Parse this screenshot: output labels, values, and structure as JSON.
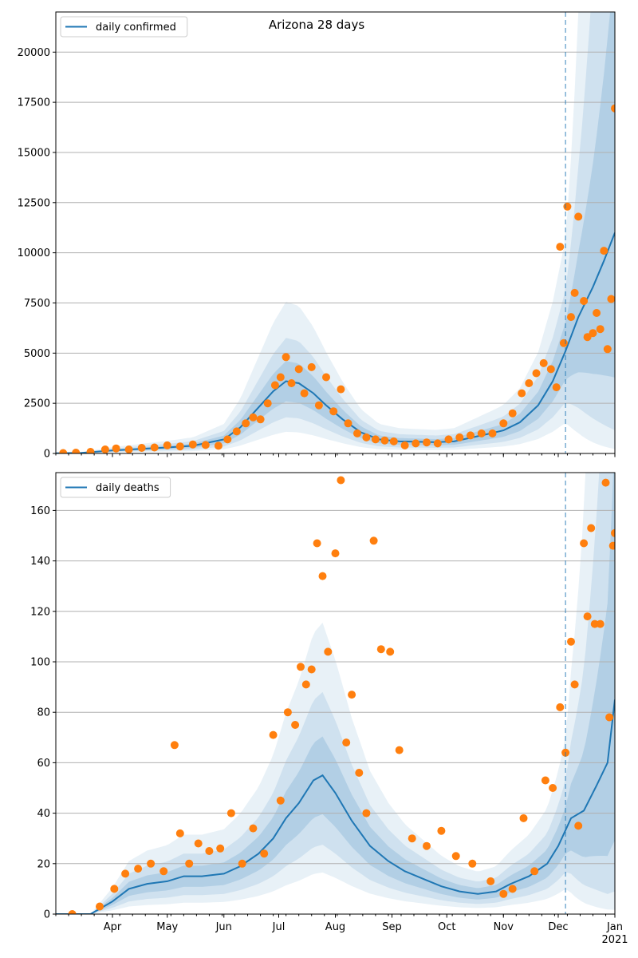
{
  "chart_data": [
    {
      "type": "line",
      "title": "Arizona 28 days",
      "xlabel": "",
      "ylabel": "",
      "ylim": [
        0,
        22000
      ],
      "grid": "horizontal",
      "legend_position": "top-left",
      "xlim": [
        "2020-03-01",
        "2021-01-01"
      ],
      "x_tick_labels": [
        "Apr",
        "May",
        "Jun",
        "Jul",
        "Aug",
        "Sep",
        "Oct",
        "Nov",
        "Dec",
        "Jan\n2021"
      ],
      "y_ticks": [
        0,
        2500,
        5000,
        7500,
        10000,
        12500,
        15000,
        17500,
        20000
      ],
      "y_tick_labels": [
        "0",
        "2500",
        "5000",
        "7500",
        "10000",
        "12500",
        "15000",
        "17500",
        "20000"
      ],
      "forecast_start": "2020-12-05",
      "series": [
        {
          "name": "daily confirmed",
          "kind": "line",
          "color": "#1f77b4",
          "x": [
            "2020-03-01",
            "2020-03-15",
            "2020-04-01",
            "2020-04-15",
            "2020-05-01",
            "2020-05-15",
            "2020-06-01",
            "2020-06-10",
            "2020-06-20",
            "2020-06-28",
            "2020-07-05",
            "2020-07-12",
            "2020-07-20",
            "2020-07-27",
            "2020-08-05",
            "2020-08-15",
            "2020-08-25",
            "2020-09-05",
            "2020-09-15",
            "2020-09-25",
            "2020-10-05",
            "2020-10-15",
            "2020-10-25",
            "2020-11-01",
            "2020-11-10",
            "2020-11-20",
            "2020-11-28",
            "2020-12-05",
            "2020-12-12",
            "2020-12-20",
            "2020-12-26",
            "2021-01-01"
          ],
          "values": [
            10,
            30,
            150,
            220,
            300,
            380,
            700,
            1300,
            2300,
            3100,
            3600,
            3500,
            3000,
            2400,
            1700,
            1050,
            700,
            600,
            580,
            560,
            600,
            800,
            1000,
            1150,
            1550,
            2400,
            3600,
            5100,
            6800,
            8300,
            9600,
            11000
          ]
        },
        {
          "name": "",
          "kind": "scatter",
          "color": "#ff7f0e",
          "x": [
            "2020-03-05",
            "2020-03-12",
            "2020-03-20",
            "2020-03-28",
            "2020-04-03",
            "2020-04-10",
            "2020-04-17",
            "2020-04-24",
            "2020-05-01",
            "2020-05-08",
            "2020-05-15",
            "2020-05-22",
            "2020-05-29",
            "2020-06-03",
            "2020-06-08",
            "2020-06-13",
            "2020-06-17",
            "2020-06-21",
            "2020-06-25",
            "2020-06-29",
            "2020-07-02",
            "2020-07-05",
            "2020-07-08",
            "2020-07-12",
            "2020-07-15",
            "2020-07-19",
            "2020-07-23",
            "2020-07-27",
            "2020-07-31",
            "2020-08-04",
            "2020-08-08",
            "2020-08-13",
            "2020-08-18",
            "2020-08-23",
            "2020-08-28",
            "2020-09-02",
            "2020-09-08",
            "2020-09-14",
            "2020-09-20",
            "2020-09-26",
            "2020-10-02",
            "2020-10-08",
            "2020-10-14",
            "2020-10-20",
            "2020-10-26",
            "2020-11-01",
            "2020-11-06",
            "2020-11-11",
            "2020-11-15",
            "2020-11-19",
            "2020-11-23",
            "2020-11-27",
            "2020-11-30",
            "2020-12-02",
            "2020-12-04",
            "2020-12-06",
            "2020-12-08",
            "2020-12-10",
            "2020-12-12",
            "2020-12-15",
            "2020-12-17",
            "2020-12-20",
            "2020-12-22",
            "2020-12-24",
            "2020-12-26",
            "2020-12-28",
            "2020-12-30",
            "2021-01-01"
          ],
          "values": [
            20,
            40,
            80,
            200,
            250,
            200,
            280,
            300,
            400,
            350,
            450,
            420,
            380,
            700,
            1100,
            1500,
            1800,
            1700,
            2500,
            3400,
            3800,
            4800,
            3500,
            4200,
            3000,
            4300,
            2400,
            3800,
            2100,
            3200,
            1500,
            1000,
            800,
            700,
            650,
            600,
            400,
            500,
            550,
            500,
            700,
            800,
            900,
            1000,
            1000,
            1500,
            2000,
            3000,
            3500,
            4000,
            4500,
            4200,
            3300,
            10300,
            5500,
            12300,
            6800,
            8000,
            11800,
            7600,
            5800,
            6000,
            7000,
            6200,
            10100,
            5200,
            7700,
            17200
          ]
        }
      ]
    },
    {
      "type": "line",
      "title": "",
      "xlabel": "",
      "ylabel": "",
      "ylim": [
        0,
        175
      ],
      "grid": "horizontal",
      "legend_position": "top-left",
      "xlim": [
        "2020-03-01",
        "2021-01-01"
      ],
      "x_tick_labels": [
        "Apr",
        "May",
        "Jun",
        "Jul",
        "Aug",
        "Sep",
        "Oct",
        "Nov",
        "Dec",
        "Jan\n2021"
      ],
      "y_ticks": [
        0,
        20,
        40,
        60,
        80,
        100,
        120,
        140,
        160
      ],
      "y_tick_labels": [
        "0",
        "20",
        "40",
        "60",
        "80",
        "100",
        "120",
        "140",
        "160"
      ],
      "forecast_start": "2020-12-05",
      "series": [
        {
          "name": "daily deaths",
          "kind": "line",
          "color": "#1f77b4",
          "x": [
            "2020-03-01",
            "2020-03-20",
            "2020-04-01",
            "2020-04-10",
            "2020-04-20",
            "2020-05-01",
            "2020-05-10",
            "2020-05-20",
            "2020-06-01",
            "2020-06-10",
            "2020-06-20",
            "2020-06-28",
            "2020-07-05",
            "2020-07-12",
            "2020-07-20",
            "2020-07-25",
            "2020-08-01",
            "2020-08-10",
            "2020-08-20",
            "2020-08-30",
            "2020-09-08",
            "2020-09-18",
            "2020-09-28",
            "2020-10-08",
            "2020-10-18",
            "2020-10-28",
            "2020-11-05",
            "2020-11-15",
            "2020-11-25",
            "2020-12-01",
            "2020-12-08",
            "2020-12-15",
            "2020-12-22",
            "2020-12-28",
            "2021-01-01"
          ],
          "values": [
            0,
            0,
            5,
            10,
            12,
            13,
            15,
            15,
            16,
            19,
            24,
            30,
            38,
            44,
            53,
            55,
            48,
            37,
            27,
            21,
            17,
            14,
            11,
            9,
            8,
            9,
            12,
            15,
            20,
            27,
            38,
            41,
            51,
            60,
            85
          ]
        },
        {
          "name": "",
          "kind": "scatter",
          "color": "#ff7f0e",
          "x": [
            "2020-03-10",
            "2020-03-25",
            "2020-04-02",
            "2020-04-08",
            "2020-04-15",
            "2020-04-22",
            "2020-04-29",
            "2020-05-05",
            "2020-05-08",
            "2020-05-13",
            "2020-05-18",
            "2020-05-24",
            "2020-05-30",
            "2020-06-05",
            "2020-06-11",
            "2020-06-17",
            "2020-06-23",
            "2020-06-28",
            "2020-07-02",
            "2020-07-06",
            "2020-07-10",
            "2020-07-13",
            "2020-07-16",
            "2020-07-19",
            "2020-07-22",
            "2020-07-25",
            "2020-07-28",
            "2020-08-01",
            "2020-08-04",
            "2020-08-07",
            "2020-08-10",
            "2020-08-14",
            "2020-08-18",
            "2020-08-22",
            "2020-08-26",
            "2020-08-31",
            "2020-09-05",
            "2020-09-12",
            "2020-09-20",
            "2020-09-28",
            "2020-10-06",
            "2020-10-15",
            "2020-10-25",
            "2020-11-01",
            "2020-11-06",
            "2020-11-12",
            "2020-11-18",
            "2020-11-24",
            "2020-11-28",
            "2020-12-02",
            "2020-12-05",
            "2020-12-08",
            "2020-12-10",
            "2020-12-12",
            "2020-12-15",
            "2020-12-17",
            "2020-12-19",
            "2020-12-21",
            "2020-12-24",
            "2020-12-27",
            "2020-12-29",
            "2020-12-31",
            "2021-01-01"
          ],
          "values": [
            0,
            3,
            10,
            16,
            18,
            20,
            17,
            67,
            32,
            20,
            28,
            25,
            26,
            40,
            20,
            34,
            24,
            71,
            45,
            80,
            75,
            98,
            91,
            97,
            147,
            134,
            104,
            143,
            172,
            68,
            87,
            56,
            40,
            148,
            105,
            104,
            65,
            30,
            27,
            33,
            23,
            20,
            13,
            8,
            10,
            38,
            17,
            53,
            50,
            82,
            64,
            108,
            91,
            35,
            147,
            118,
            153,
            115,
            115,
            171,
            78,
            146,
            151
          ]
        }
      ]
    }
  ]
}
